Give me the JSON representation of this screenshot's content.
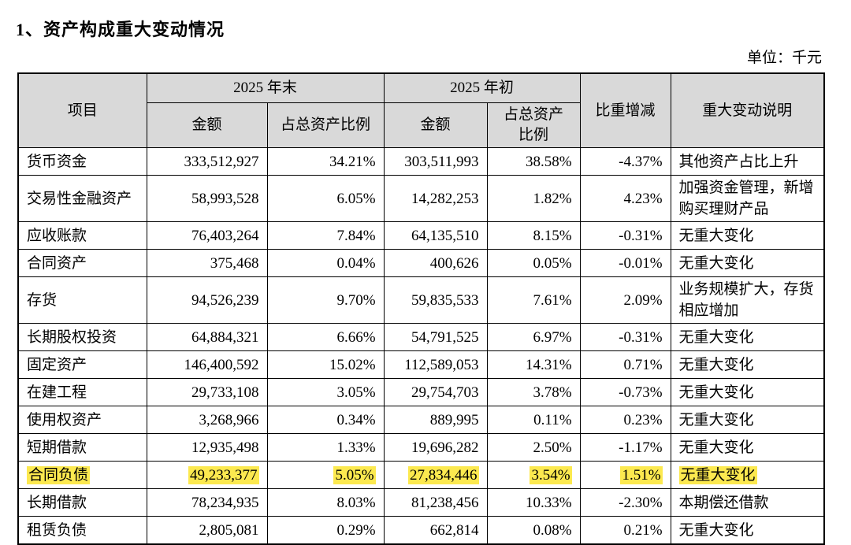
{
  "page": {
    "title": "1、资产构成重大变动情况",
    "unit_note": "单位：千元"
  },
  "colors": {
    "header_bg": "#d9d9d9",
    "highlight": "#fce94f",
    "border": "#000000"
  },
  "table": {
    "headers": {
      "item": "项目",
      "period_end": "2025 年末",
      "period_start": "2025 年初",
      "amount_end": "金额",
      "pct_end": "占总资产比例",
      "amount_start": "金额",
      "pct_start": "占总资产\n比例",
      "change": "比重增减",
      "note": "重大变动说明"
    },
    "rows": [
      {
        "item": "货币资金",
        "amount_end": "333,512,927",
        "pct_end": "34.21%",
        "amount_start": "303,511,993",
        "pct_start": "38.58%",
        "change": "-4.37%",
        "note": "其他资产占比上升",
        "highlight": false
      },
      {
        "item": "交易性金融资产",
        "amount_end": "58,993,528",
        "pct_end": "6.05%",
        "amount_start": "14,282,253",
        "pct_start": "1.82%",
        "change": "4.23%",
        "note": "加强资金管理，新增购买理财产品",
        "highlight": false
      },
      {
        "item": "应收账款",
        "amount_end": "76,403,264",
        "pct_end": "7.84%",
        "amount_start": "64,135,510",
        "pct_start": "8.15%",
        "change": "-0.31%",
        "note": "无重大变化",
        "highlight": false
      },
      {
        "item": "合同资产",
        "amount_end": "375,468",
        "pct_end": "0.04%",
        "amount_start": "400,626",
        "pct_start": "0.05%",
        "change": "-0.01%",
        "note": "无重大变化",
        "highlight": false
      },
      {
        "item": "存货",
        "amount_end": "94,526,239",
        "pct_end": "9.70%",
        "amount_start": "59,835,533",
        "pct_start": "7.61%",
        "change": "2.09%",
        "note": "业务规模扩大，存货相应增加",
        "highlight": false
      },
      {
        "item": "长期股权投资",
        "amount_end": "64,884,321",
        "pct_end": "6.66%",
        "amount_start": "54,791,525",
        "pct_start": "6.97%",
        "change": "-0.31%",
        "note": "无重大变化",
        "highlight": false
      },
      {
        "item": "固定资产",
        "amount_end": "146,400,592",
        "pct_end": "15.02%",
        "amount_start": "112,589,053",
        "pct_start": "14.31%",
        "change": "0.71%",
        "note": "无重大变化",
        "highlight": false
      },
      {
        "item": "在建工程",
        "amount_end": "29,733,108",
        "pct_end": "3.05%",
        "amount_start": "29,754,703",
        "pct_start": "3.78%",
        "change": "-0.73%",
        "note": "无重大变化",
        "highlight": false
      },
      {
        "item": "使用权资产",
        "amount_end": "3,268,966",
        "pct_end": "0.34%",
        "amount_start": "889,995",
        "pct_start": "0.11%",
        "change": "0.23%",
        "note": "无重大变化",
        "highlight": false
      },
      {
        "item": "短期借款",
        "amount_end": "12,935,498",
        "pct_end": "1.33%",
        "amount_start": "19,696,282",
        "pct_start": "2.50%",
        "change": "-1.17%",
        "note": "无重大变化",
        "highlight": false
      },
      {
        "item": "合同负债",
        "amount_end": "49,233,377",
        "pct_end": "5.05%",
        "amount_start": "27,834,446",
        "pct_start": "3.54%",
        "change": "1.51%",
        "note": "无重大变化",
        "highlight": true
      },
      {
        "item": "长期借款",
        "amount_end": "78,234,935",
        "pct_end": "8.03%",
        "amount_start": "81,238,456",
        "pct_start": "10.33%",
        "change": "-2.30%",
        "note": "本期偿还借款",
        "highlight": false
      },
      {
        "item": "租赁负债",
        "amount_end": "2,805,081",
        "pct_end": "0.29%",
        "amount_start": "662,814",
        "pct_start": "0.08%",
        "change": "0.21%",
        "note": "无重大变化",
        "highlight": false
      }
    ]
  }
}
